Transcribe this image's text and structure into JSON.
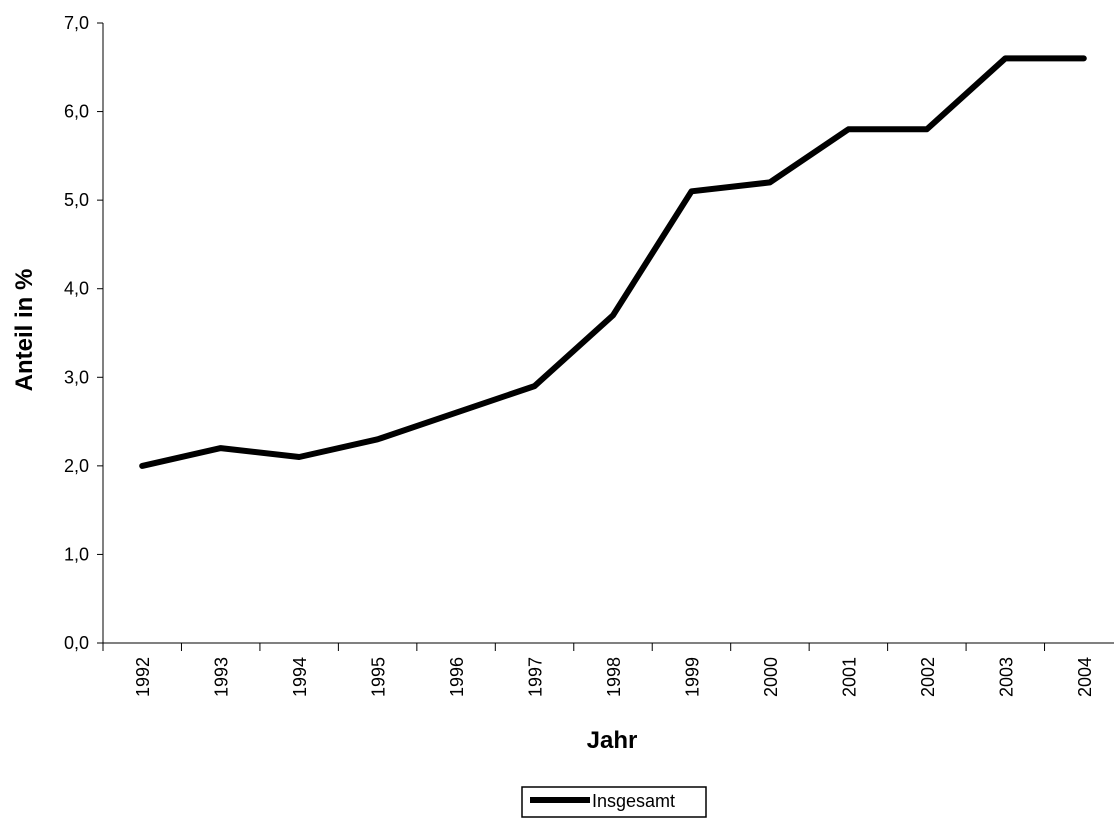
{
  "chart_data": {
    "type": "line",
    "title": "",
    "xlabel": "Jahr",
    "ylabel": "Anteil in %",
    "x": [
      "1992",
      "1993",
      "1994",
      "1995",
      "1996",
      "1997",
      "1998",
      "1999",
      "2000",
      "2001",
      "2002",
      "2003",
      "2004"
    ],
    "y_ticks": [
      "0,0",
      "1,0",
      "2,0",
      "3,0",
      "4,0",
      "5,0",
      "6,0",
      "7,0"
    ],
    "ylim": [
      0,
      7
    ],
    "series": [
      {
        "name": "Insgesamt",
        "color": "#000000",
        "values": [
          2.0,
          2.2,
          2.1,
          2.3,
          2.6,
          2.9,
          3.7,
          5.1,
          5.2,
          5.8,
          5.8,
          6.6,
          6.6
        ]
      }
    ],
    "grid": false,
    "legend_position": "bottom-center"
  }
}
